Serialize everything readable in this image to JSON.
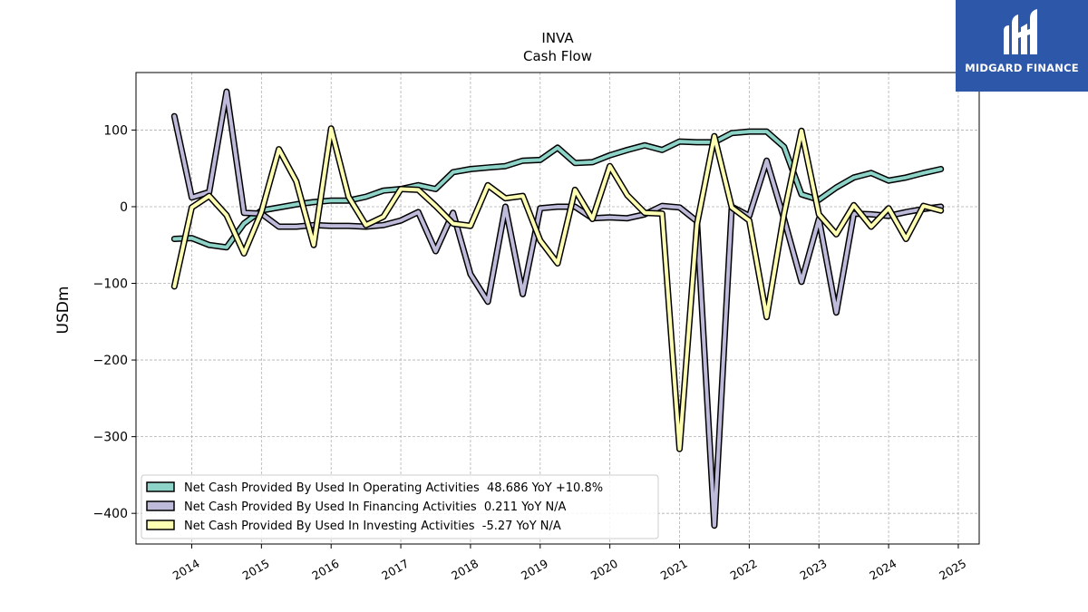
{
  "title": "INVA",
  "subtitle": "Cash Flow",
  "brand": {
    "name": "MIDGARD FINANCE",
    "color": "#2d57a9",
    "icon": "midgard-logo-icon"
  },
  "chart_data": {
    "type": "line",
    "ylabel": "USDm",
    "xlabel": "",
    "ylim": [
      -440,
      175
    ],
    "xlim": [
      2013.2,
      2025.3
    ],
    "yticks": [
      100,
      0,
      -100,
      -200,
      -300,
      -400
    ],
    "ytick_labels": [
      "100",
      "0",
      "−100",
      "−200",
      "−300",
      "−400"
    ],
    "xticks": [
      2014,
      2015,
      2016,
      2017,
      2018,
      2019,
      2020,
      2021,
      2022,
      2023,
      2024,
      2025
    ],
    "xtick_labels": [
      "2014",
      "2015",
      "2016",
      "2017",
      "2018",
      "2019",
      "2020",
      "2021",
      "2022",
      "2023",
      "2024",
      "2025"
    ],
    "grid": true,
    "legend_position": "bottom-left",
    "x": [
      2013.75,
      2014.0,
      2014.25,
      2014.5,
      2014.75,
      2015.0,
      2015.25,
      2015.5,
      2015.75,
      2016.0,
      2016.25,
      2016.5,
      2016.75,
      2017.0,
      2017.25,
      2017.5,
      2017.75,
      2018.0,
      2018.25,
      2018.5,
      2018.75,
      2019.0,
      2019.25,
      2019.5,
      2019.75,
      2020.0,
      2020.25,
      2020.5,
      2020.75,
      2021.0,
      2021.25,
      2021.5,
      2021.75,
      2022.0,
      2022.25,
      2022.5,
      2022.75,
      2023.0,
      2023.25,
      2023.5,
      2023.75,
      2024.0,
      2024.25,
      2024.5,
      2024.75
    ],
    "series": [
      {
        "name": "Net Cash Provided By Used In Operating Activities  48.686 YoY +10.8%",
        "color": "#8dd3c7",
        "values": [
          -42,
          -41,
          -50,
          -53,
          -22,
          -5,
          -1,
          3,
          6,
          8,
          8,
          13,
          21,
          23,
          28,
          23,
          45,
          49,
          51,
          53,
          60,
          61,
          77,
          57,
          58,
          67,
          74,
          80,
          74,
          85,
          84,
          84,
          96,
          98,
          98,
          78,
          16,
          9,
          25,
          38,
          44,
          34,
          38,
          44,
          49
        ]
      },
      {
        "name": "Net Cash Provided By Used In Financing Activities  0.211 YoY N/A",
        "color": "#bebada",
        "values": [
          118,
          12,
          19,
          150,
          -8,
          -9,
          -26,
          -26,
          -24,
          -25,
          -25,
          -26,
          -24,
          -18,
          -7,
          -58,
          -8,
          -88,
          -124,
          0,
          -114,
          -2,
          0,
          0,
          -15,
          -14,
          -15,
          -10,
          1,
          -1,
          -19,
          -416,
          0,
          -12,
          60,
          -16,
          -98,
          -16,
          -138,
          -9,
          -10,
          -12,
          -7,
          -3,
          0
        ]
      },
      {
        "name": "Net Cash Provided By Used In Investing Activities  -5.27 YoY N/A",
        "color": "#ffffb3",
        "values": [
          -104,
          -1,
          14,
          -11,
          -61,
          -7,
          75,
          33,
          -50,
          102,
          13,
          -24,
          -13,
          23,
          22,
          1,
          -22,
          -25,
          28,
          11,
          14,
          -44,
          -74,
          22,
          -16,
          53,
          15,
          -8,
          -9,
          -316,
          -23,
          92,
          -1,
          -18,
          -144,
          -9,
          99,
          -10,
          -36,
          2,
          -26,
          -2,
          -42,
          1,
          -5
        ]
      }
    ]
  }
}
